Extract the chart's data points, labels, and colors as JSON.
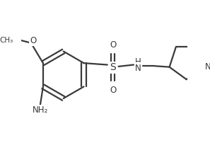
{
  "bg_color": "#ffffff",
  "line_color": "#3a3a3a",
  "text_color": "#3a3a3a",
  "bond_lw": 1.6,
  "figsize": [
    2.97,
    2.02
  ],
  "dpi": 100,
  "xlim": [
    0,
    297
  ],
  "ylim": [
    0,
    202
  ]
}
